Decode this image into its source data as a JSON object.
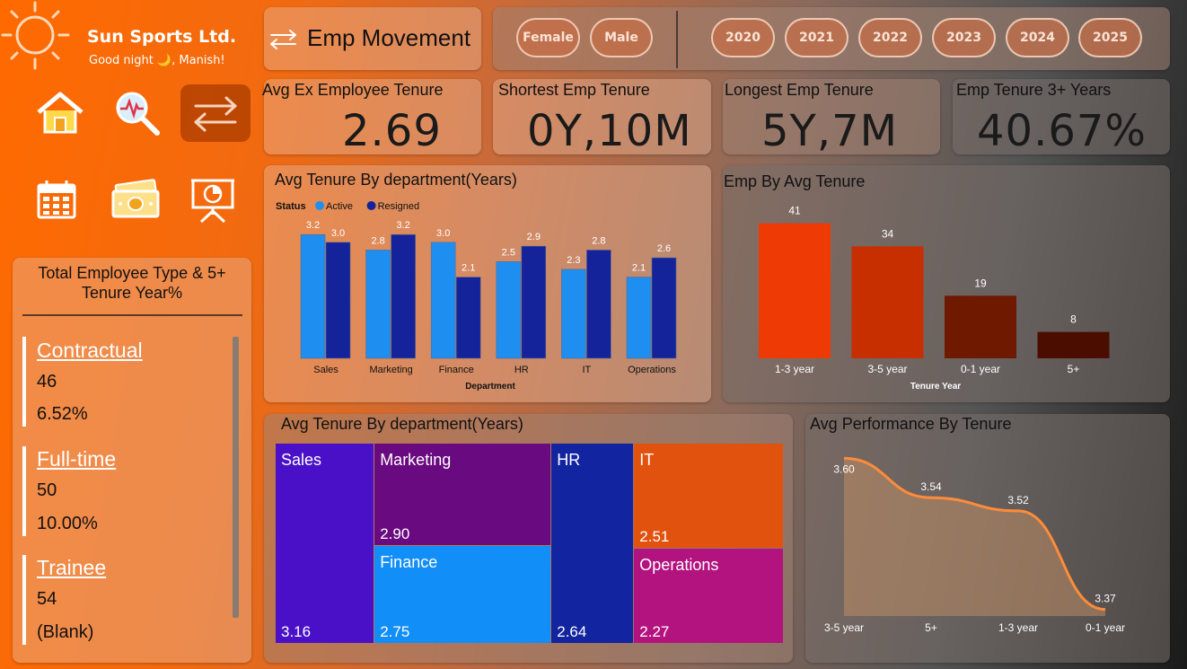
{
  "brand": {
    "name": "Sun Sports Ltd.",
    "greeting": "Good night 🌙, Manish!"
  },
  "nav": {
    "items": [
      {
        "name": "home-icon"
      },
      {
        "name": "analytics-icon"
      },
      {
        "name": "movement-icon",
        "active": true
      },
      {
        "name": "calendar-icon"
      },
      {
        "name": "money-icon"
      },
      {
        "name": "presentation-icon"
      }
    ]
  },
  "page": {
    "title": "Emp Movement"
  },
  "filters": {
    "gender": [
      "Female",
      "Male"
    ],
    "years": [
      "2020",
      "2021",
      "2022",
      "2023",
      "2024",
      "2025"
    ]
  },
  "kpis": [
    {
      "label": "Avg Ex Employee Tenure",
      "value": "2.69"
    },
    {
      "label": "Shortest Emp Tenure",
      "value": "0Y,10M"
    },
    {
      "label": "Longest Emp Tenure",
      "value": "5Y,7M"
    },
    {
      "label": "Emp Tenure 3+ Years",
      "value": "40.67%"
    }
  ],
  "emp_type": {
    "title_line1": "Total Employee Type & 5+",
    "title_line2": "Tenure Year%",
    "items": [
      {
        "name": "Contractual",
        "count": "46",
        "pct": "6.52%"
      },
      {
        "name": "Full-time",
        "count": "50",
        "pct": "10.00%"
      },
      {
        "name": "Trainee",
        "count": "54",
        "pct": "(Blank)"
      }
    ]
  },
  "chart_data": [
    {
      "type": "bar",
      "title": "Avg Tenure By department(Years)",
      "legend_title": "Status",
      "xlabel": "Department",
      "categories": [
        "Sales",
        "Marketing",
        "Finance",
        "HR",
        "IT",
        "Operations"
      ],
      "series": [
        {
          "name": "Active",
          "values": [
            3.2,
            2.8,
            3.0,
            2.5,
            2.3,
            2.1
          ],
          "color": "#1e8ff0"
        },
        {
          "name": "Resigned",
          "values": [
            3.0,
            3.2,
            2.1,
            2.9,
            2.8,
            2.6
          ],
          "color": "#14239a"
        }
      ],
      "ylim": [
        0,
        3.6
      ]
    },
    {
      "type": "bar",
      "title": "Emp By Avg Tenure",
      "xlabel": "Tenure Year",
      "categories": [
        "1-3 year",
        "3-5 year",
        "0-1 year",
        "5+"
      ],
      "values": [
        41,
        34,
        19,
        8
      ],
      "colors": [
        "#ee3a05",
        "#c72e00",
        "#6e1900",
        "#4a0d00"
      ],
      "ylim": [
        0,
        45
      ]
    },
    {
      "type": "heatmap",
      "title": "Avg Tenure By department(Years)",
      "categories": [
        "Sales",
        "Marketing",
        "Finance",
        "HR",
        "IT",
        "Operations"
      ],
      "values": [
        3.16,
        2.9,
        2.75,
        2.64,
        2.51,
        2.27
      ],
      "labels": [
        "3.16",
        "2.90",
        "2.75",
        "2.64",
        "2.51",
        "2.27"
      ],
      "colors": [
        "#4a10c8",
        "#6a0a80",
        "#118ef8",
        "#1224a0",
        "#e2520f",
        "#b3137f"
      ]
    },
    {
      "type": "area",
      "title": "Avg Performance By Tenure",
      "categories": [
        "3-5 year",
        "5+",
        "1-3 year",
        "0-1 year"
      ],
      "values": [
        3.6,
        3.54,
        3.52,
        3.37
      ],
      "labels": [
        "3.60",
        "3.54",
        "3.52",
        "3.37"
      ],
      "ylim": [
        3.36,
        3.61
      ],
      "color": "#ff8c3a"
    }
  ]
}
